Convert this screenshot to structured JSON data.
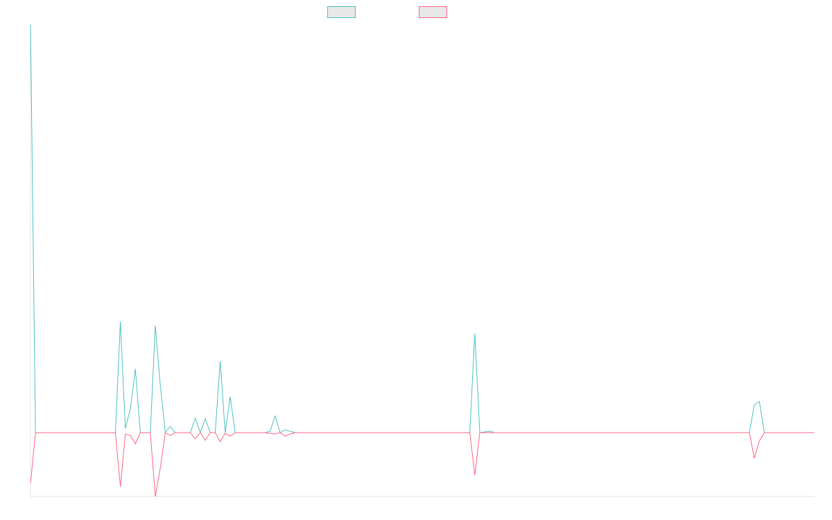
{
  "chart_data": {
    "type": "line",
    "categories": [
      null,
      null,
      null,
      null,
      null,
      null,
      null,
      null,
      null,
      null,
      null,
      null,
      null,
      null,
      null,
      null,
      null,
      null,
      null,
      null,
      null,
      null,
      null,
      null,
      null,
      null,
      null,
      null,
      null,
      null,
      null,
      null,
      null,
      null,
      null,
      null,
      null,
      null,
      null,
      null,
      null,
      null,
      null,
      null,
      null,
      null,
      null,
      null,
      null,
      null,
      null,
      null,
      null,
      null,
      null,
      null,
      null,
      null,
      null,
      null,
      null,
      null,
      null,
      null,
      null,
      null,
      null,
      null,
      null,
      null,
      null,
      null,
      null,
      null,
      null,
      null,
      null,
      null,
      null,
      null,
      null,
      null,
      null,
      null,
      null,
      null,
      null,
      null,
      null,
      null,
      null,
      null,
      null,
      null,
      null,
      null,
      null,
      null,
      null,
      null,
      null,
      null,
      null,
      null,
      null,
      null,
      null,
      null,
      null,
      null,
      null,
      null,
      null,
      null,
      null,
      null,
      null,
      null,
      null,
      null,
      null,
      null,
      null,
      null,
      null,
      null,
      null,
      null,
      null,
      null,
      null,
      null,
      null,
      null,
      null,
      null,
      null,
      null,
      null,
      null,
      null,
      null,
      null,
      null,
      null,
      null,
      null,
      null,
      null,
      null,
      null,
      null,
      null,
      null,
      null,
      null,
      null,
      null
    ],
    "series": [
      {
        "color": "#4bc0c0",
        "values": [
          588,
          0,
          0,
          0,
          0,
          0,
          0,
          0,
          0,
          0,
          0,
          0,
          0,
          0,
          0,
          0,
          0,
          0,
          160,
          6,
          34,
          92,
          0,
          0,
          0,
          154,
          69,
          0,
          9,
          0,
          0,
          0,
          0,
          21,
          0,
          20,
          0,
          0,
          103,
          0,
          52,
          0,
          0,
          0,
          0,
          0,
          0,
          0,
          2,
          24,
          0,
          4,
          2,
          0,
          0,
          0,
          0,
          0,
          0,
          0,
          0,
          0,
          0,
          0,
          0,
          0,
          0,
          0,
          0,
          0,
          0,
          0,
          0,
          0,
          0,
          0,
          0,
          0,
          0,
          0,
          0,
          0,
          0,
          0,
          0,
          0,
          0,
          0,
          0,
          143,
          0,
          1,
          2,
          0,
          0,
          0,
          0,
          0,
          0,
          0,
          0,
          0,
          0,
          0,
          0,
          0,
          0,
          0,
          0,
          0,
          0,
          0,
          0,
          0,
          0,
          0,
          0,
          0,
          0,
          0,
          0,
          0,
          0,
          0,
          0,
          0,
          0,
          0,
          0,
          0,
          0,
          0,
          0,
          0,
          0,
          0,
          0,
          0,
          0,
          0,
          0,
          0,
          0,
          0,
          0,
          40,
          45,
          0,
          0,
          0,
          0,
          0,
          0,
          0,
          0,
          0,
          0,
          0
        ]
      },
      {
        "color": "#ff6384",
        "values": [
          -73,
          0,
          0,
          0,
          0,
          0,
          0,
          0,
          0,
          0,
          0,
          0,
          0,
          0,
          0,
          0,
          0,
          0,
          -78,
          -2,
          -4,
          -16,
          0,
          0,
          0,
          -92,
          -51,
          0,
          -4,
          0,
          0,
          0,
          0,
          -9,
          0,
          -11,
          0,
          0,
          -13,
          -1,
          -5,
          0,
          0,
          0,
          0,
          0,
          0,
          0,
          -1,
          -2,
          0,
          -5,
          -2,
          0,
          0,
          0,
          0,
          0,
          0,
          0,
          0,
          0,
          0,
          0,
          0,
          0,
          0,
          0,
          0,
          0,
          0,
          0,
          0,
          0,
          0,
          0,
          0,
          0,
          0,
          0,
          0,
          0,
          0,
          0,
          0,
          0,
          0,
          0,
          0,
          -61,
          0,
          0,
          0,
          0,
          0,
          0,
          0,
          0,
          0,
          0,
          0,
          0,
          0,
          0,
          0,
          0,
          0,
          0,
          0,
          0,
          0,
          0,
          0,
          0,
          0,
          0,
          0,
          0,
          0,
          0,
          0,
          0,
          0,
          0,
          0,
          0,
          0,
          0,
          0,
          0,
          0,
          0,
          0,
          0,
          0,
          0,
          0,
          0,
          0,
          0,
          0,
          0,
          0,
          0,
          0,
          -37,
          -12,
          0,
          0,
          0,
          0,
          0,
          0,
          0,
          0,
          0,
          0,
          0
        ]
      }
    ],
    "ylim": [
      -92,
      588
    ]
  }
}
